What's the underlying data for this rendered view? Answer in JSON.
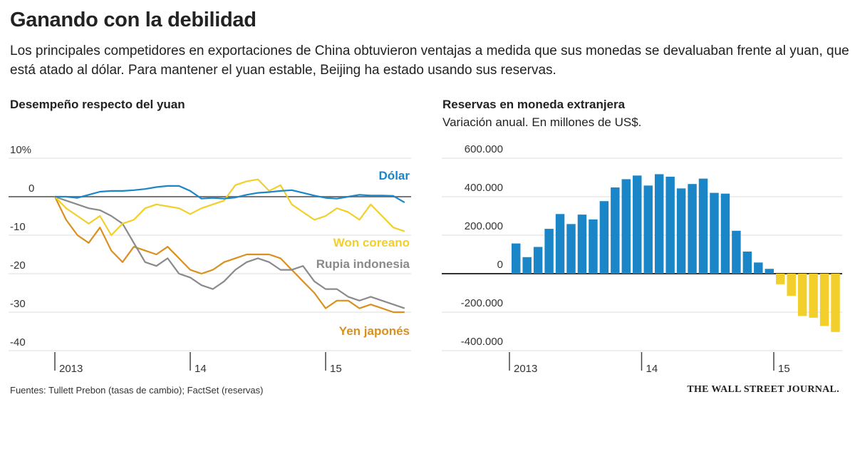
{
  "title": "Ganando con la debilidad",
  "subtitle": "Los principales competidores en exportaciones de China obtuvieron ventajas a medida que sus monedas se devaluaban frente al yuan, que está atado al dólar. Para mantener el yuan estable, Beijing ha estado usando sus reservas.",
  "source": "Fuentes: Tullett Prebon (tasas de cambio); FactSet (reservas)",
  "publisher": "THE WALL STREET JOURNAL.",
  "chart_data": [
    {
      "type": "line",
      "title": "Desempeño respecto del yuan",
      "ylim": [
        -40,
        10
      ],
      "yticks": [
        10,
        0,
        -10,
        -20,
        -30,
        -40
      ],
      "ytick_labels": [
        "10%",
        "0",
        "-10",
        "-20",
        "-30",
        "-40"
      ],
      "xtick_labels": [
        "2013",
        "14",
        "15"
      ],
      "grid": true,
      "x": [
        "2013-01",
        "2013-02",
        "2013-03",
        "2013-04",
        "2013-05",
        "2013-06",
        "2013-07",
        "2013-08",
        "2013-09",
        "2013-10",
        "2013-11",
        "2013-12",
        "2014-01",
        "2014-02",
        "2014-03",
        "2014-04",
        "2014-05",
        "2014-06",
        "2014-07",
        "2014-08",
        "2014-09",
        "2014-10",
        "2014-11",
        "2014-12",
        "2015-01",
        "2015-02",
        "2015-03",
        "2015-04",
        "2015-05",
        "2015-06",
        "2015-07",
        "2015-08"
      ],
      "series": [
        {
          "name": "Dólar",
          "color": "#1a86c8",
          "values": [
            0,
            0,
            -0.3,
            0.5,
            1.3,
            1.5,
            1.5,
            1.7,
            2,
            2.5,
            2.8,
            2.8,
            1.5,
            -0.5,
            -0.3,
            -0.5,
            -0.2,
            0.5,
            1,
            1.2,
            1.5,
            1.7,
            1,
            0.3,
            -0.3,
            -0.5,
            0,
            0.5,
            0.3,
            0.3,
            0.2,
            -1.5
          ]
        },
        {
          "name": "Won coreano",
          "color": "#f2cf2a",
          "values": [
            0,
            -3,
            -5,
            -7,
            -5,
            -10,
            -7,
            -6,
            -3,
            -2,
            -2.5,
            -3,
            -4.5,
            -3,
            -2,
            -1,
            3,
            4,
            4.5,
            1.5,
            3,
            -2,
            -4,
            -6,
            -5,
            -3,
            -4,
            -6,
            -2,
            -5,
            -8,
            -9
          ]
        },
        {
          "name": "Rupia indonesia",
          "color": "#8a8a8a",
          "values": [
            0,
            -1,
            -2,
            -3,
            -3.5,
            -5,
            -7,
            -12,
            -17,
            -18,
            -16,
            -20,
            -21,
            -23,
            -24,
            -22,
            -19,
            -17,
            -16,
            -17,
            -19,
            -19,
            -18,
            -22,
            -24,
            -24,
            -26,
            -27,
            -26,
            -27,
            -28,
            -29
          ]
        },
        {
          "name": "Yen japonés",
          "color": "#d9901e",
          "values": [
            0,
            -6,
            -10,
            -12,
            -8,
            -14,
            -17,
            -13,
            -14,
            -15,
            -13,
            -16,
            -19,
            -20,
            -19,
            -17,
            -16,
            -15,
            -15,
            -15,
            -16,
            -19,
            -22,
            -25,
            -29,
            -27,
            -27,
            -29,
            -28,
            -29,
            -30,
            -30
          ]
        }
      ]
    },
    {
      "type": "bar",
      "title": "Reservas en moneda extranjera",
      "subtitle": "Variación anual. En millones de US$.",
      "ylim": [
        -400000,
        600000
      ],
      "yticks": [
        600000,
        400000,
        200000,
        0,
        -200000,
        -400000
      ],
      "ytick_labels": [
        "600.000",
        "400.000",
        "200.000",
        "0",
        "-200.000",
        "-400.000"
      ],
      "xtick_labels": [
        "2013",
        "14",
        "15"
      ],
      "grid": true,
      "positive_color": "#1a86c8",
      "negative_color": "#f2cf2a",
      "categories": [
        "2013-01",
        "2013-02",
        "2013-03",
        "2013-04",
        "2013-05",
        "2013-06",
        "2013-07",
        "2013-08",
        "2013-09",
        "2013-10",
        "2013-11",
        "2013-12",
        "2014-01",
        "2014-02",
        "2014-03",
        "2014-04",
        "2014-05",
        "2014-06",
        "2014-07",
        "2014-08",
        "2014-09",
        "2014-10",
        "2014-11",
        "2014-12",
        "2015-01",
        "2015-02",
        "2015-03",
        "2015-04",
        "2015-05",
        "2015-06"
      ],
      "values": [
        157000,
        86000,
        139000,
        233000,
        310000,
        258000,
        307000,
        282000,
        377000,
        448000,
        491000,
        510000,
        458000,
        517000,
        504000,
        443000,
        466000,
        494000,
        420000,
        416000,
        223000,
        115000,
        58000,
        25000,
        -55000,
        -115000,
        -220000,
        -229000,
        -272000,
        -303000
      ]
    }
  ]
}
